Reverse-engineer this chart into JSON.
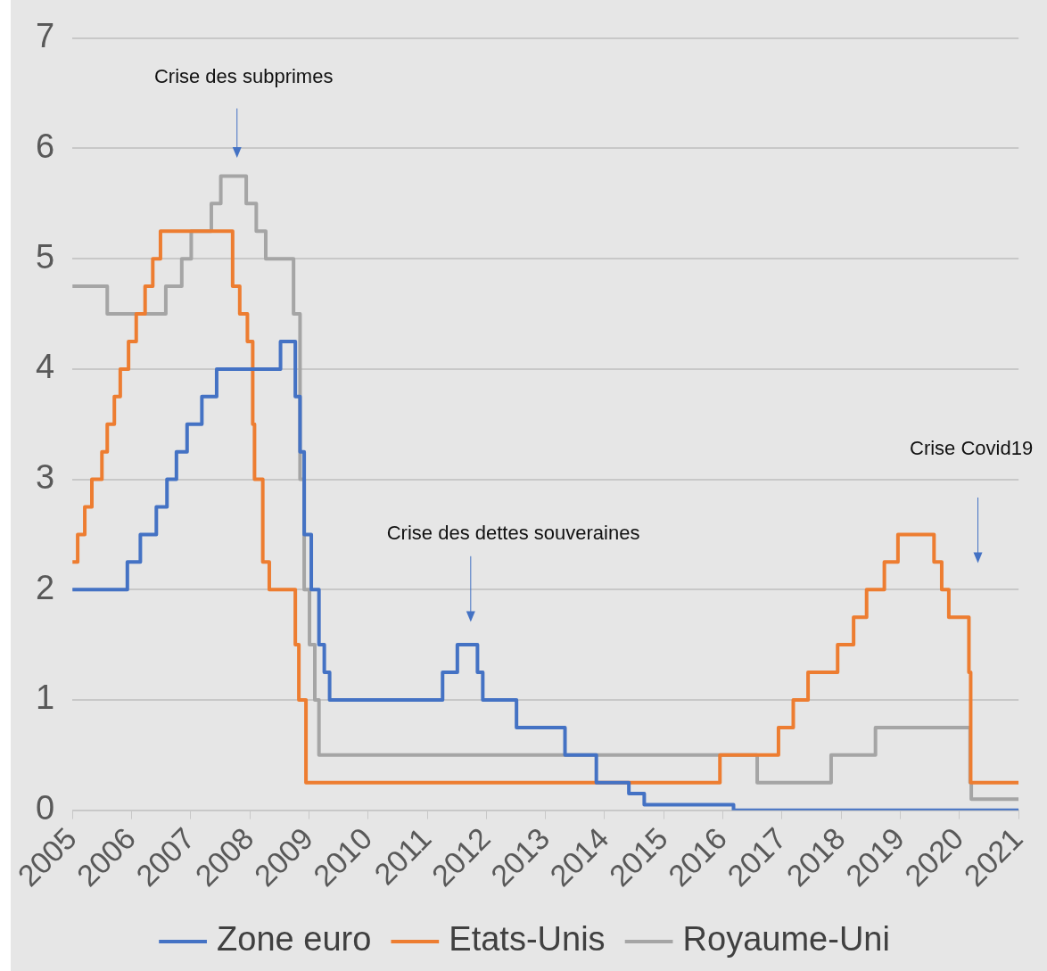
{
  "chart_data": {
    "type": "step",
    "xlim": [
      2005,
      2021
    ],
    "xticks": [
      2005,
      2006,
      2007,
      2008,
      2009,
      2010,
      2011,
      2012,
      2013,
      2014,
      2015,
      2016,
      2017,
      2018,
      2019,
      2020,
      2021
    ],
    "ylim": [
      0,
      7
    ],
    "yticks": [
      0,
      1,
      2,
      3,
      4,
      5,
      6,
      7
    ],
    "grid": "y",
    "legend": "bottom",
    "marker": "none",
    "line_style": "solid",
    "annotations": [
      "Crise des subprimes",
      "Crise des dettes souveraines",
      "Crise Covid19"
    ],
    "series": [
      {
        "name": "Zone euro",
        "color": "#4472c4",
        "x": [
          2005,
          2005.93,
          2006.15,
          2006.42,
          2006.6,
          2006.76,
          2006.94,
          2007.19,
          2007.44,
          2008.52,
          2008.77,
          2008.85,
          2008.92,
          2009.04,
          2009.17,
          2009.26,
          2009.35,
          2011.26,
          2011.51,
          2011.85,
          2011.94,
          2012.51,
          2013.33,
          2013.86,
          2014.41,
          2014.67,
          2016.18,
          2021
        ],
        "values": [
          2,
          2.25,
          2.5,
          2.75,
          3,
          3.25,
          3.5,
          3.75,
          4,
          4.25,
          3.75,
          3.25,
          2.5,
          2,
          1.5,
          1.25,
          1,
          1.25,
          1.5,
          1.25,
          1,
          0.75,
          0.5,
          0.25,
          0.15,
          0.05,
          0,
          0
        ]
      },
      {
        "name": "Etats-Unis",
        "color": "#ed7d31",
        "x": [
          2005,
          2005.09,
          2005.21,
          2005.33,
          2005.5,
          2005.59,
          2005.71,
          2005.81,
          2005.95,
          2006.08,
          2006.23,
          2006.36,
          2006.49,
          2007.71,
          2007.83,
          2007.96,
          2008.05,
          2008.08,
          2008.22,
          2008.33,
          2008.77,
          2008.83,
          2008.95,
          2015.95,
          2016.94,
          2017.19,
          2017.44,
          2017.94,
          2018.21,
          2018.43,
          2018.73,
          2018.96,
          2019.57,
          2019.7,
          2019.82,
          2020.16,
          2020.19,
          2021
        ],
        "values": [
          2.25,
          2.5,
          2.75,
          3,
          3.25,
          3.5,
          3.75,
          4,
          4.25,
          4.5,
          4.75,
          5,
          5.25,
          4.75,
          4.5,
          4.25,
          3.5,
          3,
          2.25,
          2,
          1.5,
          1,
          0.25,
          0.5,
          0.75,
          1,
          1.25,
          1.5,
          1.75,
          2,
          2.25,
          2.5,
          2.25,
          2,
          1.75,
          1.25,
          0.25,
          0.25
        ]
      },
      {
        "name": "Royaume-Uni",
        "color": "#a5a5a5",
        "x": [
          2005,
          2005.59,
          2006.58,
          2006.85,
          2007.01,
          2007.35,
          2007.51,
          2007.94,
          2008.11,
          2008.27,
          2008.74,
          2008.85,
          2008.92,
          2009.01,
          2009.1,
          2009.17,
          2016.58,
          2017.83,
          2018.58,
          2020.18,
          2020.2,
          2021
        ],
        "values": [
          4.75,
          4.5,
          4.75,
          5,
          5.25,
          5.5,
          5.75,
          5.5,
          5.25,
          5,
          4.5,
          3,
          2,
          1.5,
          1,
          0.5,
          0.25,
          0.5,
          0.75,
          0.25,
          0.1,
          0.1
        ]
      }
    ]
  }
}
